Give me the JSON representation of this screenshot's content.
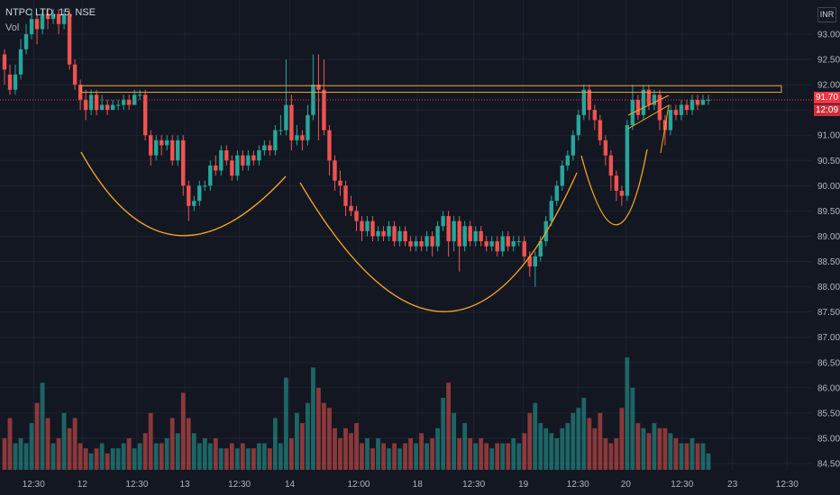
{
  "header": {
    "symbol_line": "NTPC LTD, 15, NSE",
    "volume_label": "Vol",
    "currency": "INR"
  },
  "price_tags": {
    "last_price": "91.70",
    "countdown": "12:09"
  },
  "colors": {
    "background": "#131722",
    "up": "#26a69a",
    "down": "#ef5350",
    "pattern": "#f5a623",
    "resistance_line": "#e8a33d",
    "price_line": "#f23645"
  },
  "chart_data": {
    "type": "candlestick",
    "y_ticks": [
      "93.00",
      "92.50",
      "92.00",
      "91.50",
      "91.00",
      "90.50",
      "90.00",
      "89.50",
      "89.00",
      "88.50",
      "88.00",
      "87.50",
      "87.00",
      "86.50",
      "86.00",
      "85.50",
      "85.00",
      "84.50"
    ],
    "ylim": [
      84.4,
      93.4
    ],
    "x_ticks": [
      "12:30",
      "12",
      "12:30",
      "13",
      "12:30",
      "14",
      "12:00",
      "18",
      "12:30",
      "19",
      "12:30",
      "20",
      "12:30",
      "23",
      "12:30"
    ],
    "x_tick_frac": [
      0.04,
      0.098,
      0.163,
      0.22,
      0.285,
      0.345,
      0.427,
      0.497,
      0.564,
      0.623,
      0.688,
      0.745,
      0.812,
      0.872,
      0.937
    ],
    "resistance_band": [
      91.85,
      91.98
    ],
    "last_price": 91.7,
    "candles": [
      [
        92.6,
        92.3,
        92.7,
        92.0
      ],
      [
        92.2,
        91.9,
        92.4,
        91.8
      ],
      [
        91.9,
        92.2,
        92.4,
        91.8
      ],
      [
        92.2,
        92.7,
        92.9,
        92.1
      ],
      [
        92.7,
        93.0,
        93.2,
        92.6
      ],
      [
        93.0,
        93.3,
        93.5,
        92.9
      ],
      [
        93.3,
        93.1,
        93.4,
        92.8
      ],
      [
        93.1,
        93.4,
        93.5,
        93.0
      ],
      [
        93.4,
        93.3,
        93.5,
        93.1
      ],
      [
        93.3,
        93.4,
        93.5,
        93.2
      ],
      [
        93.4,
        93.2,
        93.5,
        93.0
      ],
      [
        93.2,
        93.4,
        93.5,
        93.1
      ],
      [
        93.4,
        92.4,
        93.5,
        92.3
      ],
      [
        92.4,
        92.0,
        92.5,
        91.9
      ],
      [
        92.0,
        91.7,
        92.1,
        91.5
      ],
      [
        91.7,
        91.5,
        91.9,
        91.3
      ],
      [
        91.5,
        91.8,
        91.9,
        91.4
      ],
      [
        91.8,
        91.5,
        91.9,
        91.4
      ],
      [
        91.5,
        91.6,
        91.8,
        91.5
      ],
      [
        91.6,
        91.5,
        91.7,
        91.4
      ],
      [
        91.5,
        91.6,
        91.7,
        91.5
      ],
      [
        91.6,
        91.6,
        91.7,
        91.5
      ],
      [
        91.6,
        91.7,
        91.8,
        91.5
      ],
      [
        91.7,
        91.6,
        91.8,
        91.5
      ],
      [
        91.6,
        91.8,
        91.9,
        91.6
      ],
      [
        91.8,
        91.8,
        91.9,
        91.7
      ],
      [
        91.8,
        91.0,
        91.9,
        90.9
      ],
      [
        91.0,
        90.6,
        91.1,
        90.4
      ],
      [
        90.6,
        90.9,
        91.0,
        90.5
      ],
      [
        90.9,
        90.8,
        91.0,
        90.6
      ],
      [
        90.8,
        90.9,
        91.0,
        90.7
      ],
      [
        90.9,
        90.5,
        91.0,
        90.4
      ],
      [
        90.5,
        90.9,
        91.0,
        90.4
      ],
      [
        90.9,
        90.0,
        91.0,
        89.8
      ],
      [
        90.0,
        89.6,
        90.1,
        89.3
      ],
      [
        89.6,
        89.7,
        89.8,
        89.5
      ],
      [
        89.7,
        90.0,
        90.1,
        89.6
      ],
      [
        90.0,
        90.0,
        90.1,
        89.9
      ],
      [
        90.0,
        90.4,
        90.5,
        89.9
      ],
      [
        90.4,
        90.3,
        90.6,
        90.2
      ],
      [
        90.3,
        90.7,
        90.8,
        90.2
      ],
      [
        90.7,
        90.5,
        90.8,
        90.4
      ],
      [
        90.5,
        90.2,
        90.6,
        90.1
      ],
      [
        90.2,
        90.6,
        90.7,
        90.1
      ],
      [
        90.6,
        90.4,
        90.7,
        90.3
      ],
      [
        90.4,
        90.6,
        90.7,
        90.3
      ],
      [
        90.6,
        90.5,
        90.7,
        90.4
      ],
      [
        90.5,
        90.7,
        90.8,
        90.4
      ],
      [
        90.7,
        90.8,
        90.9,
        90.6
      ],
      [
        90.8,
        90.7,
        90.9,
        90.6
      ],
      [
        90.7,
        91.1,
        91.2,
        90.6
      ],
      [
        91.1,
        91.1,
        91.4,
        91.0
      ],
      [
        91.1,
        91.6,
        92.5,
        91.0
      ],
      [
        91.6,
        90.9,
        91.8,
        90.7
      ],
      [
        90.9,
        91.0,
        91.2,
        90.8
      ],
      [
        91.0,
        90.9,
        91.1,
        90.7
      ],
      [
        90.9,
        91.4,
        91.6,
        90.8
      ],
      [
        91.4,
        92.0,
        92.6,
        91.3
      ],
      [
        92.0,
        91.9,
        92.6,
        90.9
      ],
      [
        91.9,
        91.1,
        92.5,
        91.0
      ],
      [
        91.1,
        90.5,
        91.2,
        90.2
      ],
      [
        90.5,
        90.1,
        90.6,
        89.9
      ],
      [
        90.1,
        90.0,
        90.3,
        89.8
      ],
      [
        90.0,
        89.6,
        90.1,
        89.4
      ],
      [
        89.6,
        89.5,
        89.8,
        89.4
      ],
      [
        89.5,
        89.3,
        89.6,
        89.1
      ],
      [
        89.3,
        89.1,
        89.4,
        88.9
      ],
      [
        89.1,
        89.3,
        89.4,
        89.0
      ],
      [
        89.3,
        89.0,
        89.4,
        88.9
      ],
      [
        89.0,
        89.1,
        89.2,
        88.9
      ],
      [
        89.1,
        89.0,
        89.2,
        88.9
      ],
      [
        89.0,
        89.2,
        89.3,
        88.9
      ],
      [
        89.2,
        88.9,
        89.3,
        88.8
      ],
      [
        88.9,
        89.1,
        89.2,
        88.8
      ],
      [
        89.1,
        88.9,
        89.2,
        88.8
      ],
      [
        88.9,
        88.8,
        89.0,
        88.7
      ],
      [
        88.8,
        88.9,
        89.0,
        88.7
      ],
      [
        88.9,
        88.8,
        89.0,
        88.7
      ],
      [
        88.8,
        89.0,
        89.1,
        88.7
      ],
      [
        89.0,
        88.8,
        89.1,
        88.6
      ],
      [
        88.8,
        89.2,
        89.3,
        88.7
      ],
      [
        89.2,
        89.4,
        89.5,
        89.1
      ],
      [
        89.4,
        88.9,
        89.5,
        88.6
      ],
      [
        88.9,
        89.3,
        89.4,
        88.7
      ],
      [
        89.3,
        88.8,
        89.4,
        88.3
      ],
      [
        88.8,
        89.2,
        89.3,
        88.7
      ],
      [
        89.2,
        88.9,
        89.3,
        88.8
      ],
      [
        88.9,
        89.1,
        89.2,
        88.8
      ],
      [
        89.1,
        88.9,
        89.2,
        88.8
      ],
      [
        88.9,
        88.8,
        89.0,
        88.7
      ],
      [
        88.8,
        88.9,
        89.0,
        88.7
      ],
      [
        88.9,
        88.7,
        89.0,
        88.6
      ],
      [
        88.7,
        89.0,
        89.1,
        88.6
      ],
      [
        89.0,
        88.8,
        89.1,
        88.7
      ],
      [
        88.8,
        88.9,
        89.0,
        88.7
      ],
      [
        88.9,
        88.9,
        89.0,
        88.8
      ],
      [
        88.9,
        88.6,
        89.0,
        88.5
      ],
      [
        88.6,
        88.4,
        88.7,
        88.2
      ],
      [
        88.4,
        88.6,
        88.7,
        88.0
      ],
      [
        88.6,
        88.9,
        89.0,
        88.5
      ],
      [
        88.9,
        89.3,
        89.4,
        88.8
      ],
      [
        89.3,
        89.7,
        89.8,
        89.2
      ],
      [
        89.7,
        90.0,
        90.1,
        89.6
      ],
      [
        90.0,
        90.4,
        90.5,
        89.9
      ],
      [
        90.4,
        90.6,
        90.7,
        90.3
      ],
      [
        90.6,
        91.0,
        91.1,
        90.5
      ],
      [
        91.0,
        91.4,
        91.5,
        90.9
      ],
      [
        91.4,
        91.9,
        92.0,
        91.3
      ],
      [
        91.9,
        91.5,
        92.0,
        91.3
      ],
      [
        91.5,
        91.3,
        91.6,
        91.1
      ],
      [
        91.3,
        90.9,
        91.4,
        90.8
      ],
      [
        90.9,
        90.6,
        91.0,
        90.4
      ],
      [
        90.6,
        90.2,
        90.7,
        89.9
      ],
      [
        90.2,
        89.9,
        90.3,
        89.7
      ],
      [
        89.9,
        89.8,
        90.0,
        89.6
      ],
      [
        89.8,
        91.2,
        91.3,
        89.7
      ],
      [
        91.2,
        91.7,
        92.0,
        91.1
      ],
      [
        91.7,
        91.4,
        91.8,
        91.3
      ],
      [
        91.4,
        91.9,
        92.0,
        91.3
      ],
      [
        91.9,
        91.6,
        92.0,
        91.5
      ],
      [
        91.6,
        91.8,
        91.9,
        91.5
      ],
      [
        91.8,
        91.3,
        91.9,
        91.1
      ],
      [
        91.3,
        91.1,
        91.4,
        90.8
      ],
      [
        91.1,
        91.5,
        91.6,
        91.0
      ],
      [
        91.5,
        91.4,
        91.6,
        91.3
      ],
      [
        91.4,
        91.6,
        91.7,
        91.3
      ],
      [
        91.6,
        91.5,
        91.7,
        91.4
      ],
      [
        91.5,
        91.7,
        91.8,
        91.4
      ],
      [
        91.7,
        91.6,
        91.8,
        91.5
      ],
      [
        91.6,
        91.7,
        91.8,
        91.6
      ],
      [
        91.7,
        91.7,
        91.8,
        91.6
      ]
    ],
    "volume": [
      85.0,
      85.4,
      84.9,
      85.0,
      84.9,
      85.3,
      85.7,
      86.1,
      85.4,
      84.9,
      85.0,
      85.5,
      85.2,
      85.4,
      84.9,
      84.8,
      84.7,
      84.8,
      84.9,
      84.7,
      84.8,
      84.8,
      84.9,
      85.0,
      84.8,
      84.9,
      85.1,
      85.5,
      84.9,
      84.9,
      85.0,
      85.4,
      85.1,
      85.9,
      85.4,
      85.1,
      84.9,
      85.0,
      84.9,
      85.0,
      84.8,
      84.8,
      84.9,
      84.8,
      84.9,
      84.8,
      84.8,
      84.9,
      84.9,
      84.8,
      85.4,
      84.9,
      86.2,
      85.0,
      85.5,
      85.3,
      85.7,
      86.4,
      86.0,
      85.7,
      85.6,
      85.2,
      85.0,
      85.2,
      85.1,
      85.3,
      84.9,
      85.0,
      84.8,
      85.0,
      84.9,
      84.8,
      84.9,
      84.8,
      84.9,
      85.0,
      84.9,
      85.1,
      84.9,
      85.0,
      85.2,
      85.8,
      86.1,
      85.5,
      85.0,
      85.3,
      85.0,
      84.9,
      85.0,
      84.9,
      84.8,
      84.9,
      84.9,
      84.9,
      85.0,
      84.9,
      85.1,
      85.5,
      85.7,
      85.3,
      85.2,
      85.1,
      85.0,
      85.2,
      85.3,
      85.5,
      85.6,
      85.8,
      85.4,
      85.2,
      85.5,
      85.0,
      84.9,
      85.0,
      85.6,
      86.6,
      86.0,
      85.3,
      85.2,
      85.1,
      85.3,
      85.2,
      85.2,
      85.1,
      85.0,
      84.9,
      84.9,
      85.0,
      84.9,
      84.9,
      84.7
    ]
  }
}
